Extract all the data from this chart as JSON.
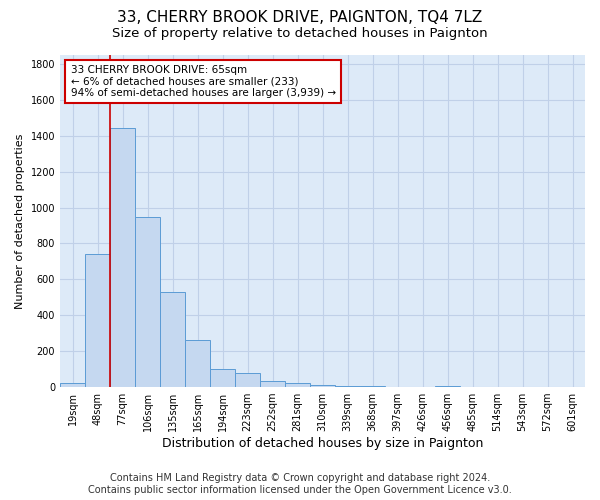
{
  "title1": "33, CHERRY BROOK DRIVE, PAIGNTON, TQ4 7LZ",
  "title2": "Size of property relative to detached houses in Paignton",
  "xlabel": "Distribution of detached houses by size in Paignton",
  "ylabel": "Number of detached properties",
  "footer1": "Contains HM Land Registry data © Crown copyright and database right 2024.",
  "footer2": "Contains public sector information licensed under the Open Government Licence v3.0.",
  "categories": [
    "19sqm",
    "48sqm",
    "77sqm",
    "106sqm",
    "135sqm",
    "165sqm",
    "194sqm",
    "223sqm",
    "252sqm",
    "281sqm",
    "310sqm",
    "339sqm",
    "368sqm",
    "397sqm",
    "426sqm",
    "456sqm",
    "485sqm",
    "514sqm",
    "543sqm",
    "572sqm",
    "601sqm"
  ],
  "values": [
    25,
    740,
    1445,
    950,
    530,
    260,
    100,
    80,
    35,
    20,
    10,
    5,
    5,
    3,
    3,
    5,
    3,
    3,
    3,
    3,
    3
  ],
  "bar_color": "#c5d8f0",
  "bar_edge_color": "#5b9bd5",
  "vline_color": "#cc0000",
  "vline_x": 1.5,
  "annotation_box_text": "33 CHERRY BROOK DRIVE: 65sqm\n← 6% of detached houses are smaller (233)\n94% of semi-detached houses are larger (3,939) →",
  "ylim": [
    0,
    1850
  ],
  "yticks": [
    0,
    200,
    400,
    600,
    800,
    1000,
    1200,
    1400,
    1600,
    1800
  ],
  "grid_color": "#c0d0e8",
  "background_color": "#ddeaf8",
  "title1_fontsize": 11,
  "title2_fontsize": 9.5,
  "xlabel_fontsize": 9,
  "ylabel_fontsize": 8,
  "tick_fontsize": 7,
  "footer_fontsize": 7,
  "ann_fontsize": 7.5
}
